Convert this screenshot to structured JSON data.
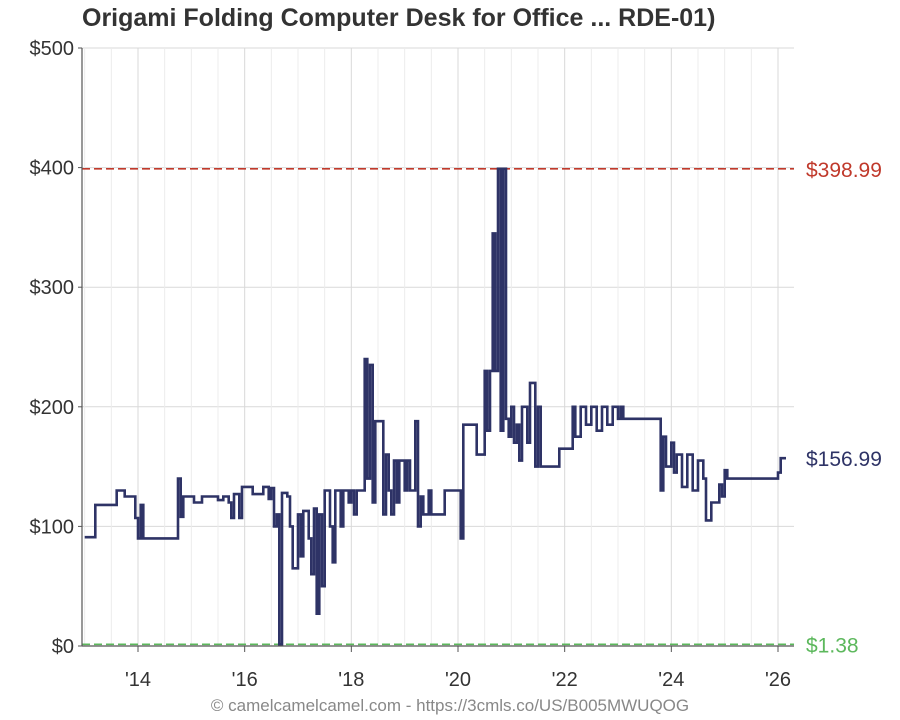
{
  "chart_data": {
    "type": "line",
    "title": "Origami Folding Computer Desk for Office ... RDE-01)",
    "xlabel": "",
    "ylabel": "",
    "y_ticks": [
      "$0",
      "$100",
      "$200",
      "$300",
      "$400",
      "$500"
    ],
    "x_ticks": [
      "'14",
      "'16",
      "'18",
      "'20",
      "'22",
      "'24",
      "'26"
    ],
    "ylim": [
      0,
      500
    ],
    "xlim": [
      2012.95,
      2026.3
    ],
    "grid": true,
    "reference_lines": [
      {
        "label": "$398.99",
        "value": 398.99,
        "color": "#c0392b"
      },
      {
        "label": "$1.38",
        "value": 1.38,
        "color": "#5cb85c"
      }
    ],
    "current_label": "$156.99",
    "current_value": 156.99,
    "series": [
      {
        "color": "#2e3366",
        "points": [
          [
            2013.0,
            91
          ],
          [
            2013.15,
            91
          ],
          [
            2013.2,
            118
          ],
          [
            2013.55,
            118
          ],
          [
            2013.6,
            130
          ],
          [
            2013.7,
            130
          ],
          [
            2013.75,
            125
          ],
          [
            2013.9,
            125
          ],
          [
            2013.95,
            107
          ],
          [
            2014.0,
            90
          ],
          [
            2014.05,
            118
          ],
          [
            2014.1,
            90
          ],
          [
            2014.7,
            90
          ],
          [
            2014.75,
            140
          ],
          [
            2014.8,
            108
          ],
          [
            2014.85,
            125
          ],
          [
            2015.0,
            125
          ],
          [
            2015.05,
            120
          ],
          [
            2015.2,
            125
          ],
          [
            2015.5,
            122
          ],
          [
            2015.6,
            125
          ],
          [
            2015.7,
            120
          ],
          [
            2015.75,
            107
          ],
          [
            2015.8,
            127
          ],
          [
            2015.9,
            107
          ],
          [
            2015.95,
            133
          ],
          [
            2016.1,
            133
          ],
          [
            2016.15,
            127
          ],
          [
            2016.3,
            127
          ],
          [
            2016.35,
            133
          ],
          [
            2016.45,
            123
          ],
          [
            2016.5,
            132
          ],
          [
            2016.55,
            100
          ],
          [
            2016.6,
            110
          ],
          [
            2016.65,
            1.38
          ],
          [
            2016.7,
            128
          ],
          [
            2016.8,
            125
          ],
          [
            2016.85,
            100
          ],
          [
            2016.9,
            65
          ],
          [
            2017.0,
            110
          ],
          [
            2017.05,
            75
          ],
          [
            2017.1,
            113
          ],
          [
            2017.2,
            90
          ],
          [
            2017.25,
            60
          ],
          [
            2017.3,
            115
          ],
          [
            2017.35,
            27
          ],
          [
            2017.4,
            110
          ],
          [
            2017.45,
            50
          ],
          [
            2017.5,
            130
          ],
          [
            2017.6,
            100
          ],
          [
            2017.65,
            70
          ],
          [
            2017.7,
            130
          ],
          [
            2017.8,
            100
          ],
          [
            2017.85,
            130
          ],
          [
            2017.95,
            120
          ],
          [
            2018.0,
            130
          ],
          [
            2018.05,
            110
          ],
          [
            2018.1,
            130
          ],
          [
            2018.2,
            130
          ],
          [
            2018.25,
            240
          ],
          [
            2018.3,
            140
          ],
          [
            2018.35,
            235
          ],
          [
            2018.4,
            120
          ],
          [
            2018.45,
            188
          ],
          [
            2018.55,
            188
          ],
          [
            2018.6,
            110
          ],
          [
            2018.65,
            160
          ],
          [
            2018.7,
            130
          ],
          [
            2018.75,
            110
          ],
          [
            2018.8,
            155
          ],
          [
            2018.85,
            120
          ],
          [
            2018.9,
            155
          ],
          [
            2019.0,
            130
          ],
          [
            2019.05,
            155
          ],
          [
            2019.1,
            130
          ],
          [
            2019.2,
            188
          ],
          [
            2019.25,
            100
          ],
          [
            2019.3,
            125
          ],
          [
            2019.35,
            110
          ],
          [
            2019.45,
            130
          ],
          [
            2019.5,
            110
          ],
          [
            2019.7,
            110
          ],
          [
            2019.75,
            130
          ],
          [
            2020.0,
            130
          ],
          [
            2020.05,
            90
          ],
          [
            2020.1,
            185
          ],
          [
            2020.3,
            185
          ],
          [
            2020.35,
            160
          ],
          [
            2020.45,
            160
          ],
          [
            2020.5,
            230
          ],
          [
            2020.55,
            180
          ],
          [
            2020.6,
            230
          ],
          [
            2020.65,
            345
          ],
          [
            2020.7,
            230
          ],
          [
            2020.75,
            398.99
          ],
          [
            2020.8,
            180
          ],
          [
            2020.85,
            398.99
          ],
          [
            2020.9,
            190
          ],
          [
            2020.95,
            175
          ],
          [
            2021.0,
            200
          ],
          [
            2021.05,
            170
          ],
          [
            2021.1,
            185
          ],
          [
            2021.15,
            155
          ],
          [
            2021.2,
            200
          ],
          [
            2021.3,
            170
          ],
          [
            2021.35,
            220
          ],
          [
            2021.45,
            150
          ],
          [
            2021.5,
            200
          ],
          [
            2021.55,
            150
          ],
          [
            2021.85,
            150
          ],
          [
            2021.9,
            165
          ],
          [
            2022.1,
            165
          ],
          [
            2022.15,
            200
          ],
          [
            2022.2,
            175
          ],
          [
            2022.3,
            200
          ],
          [
            2022.4,
            185
          ],
          [
            2022.5,
            200
          ],
          [
            2022.6,
            180
          ],
          [
            2022.7,
            200
          ],
          [
            2022.8,
            185
          ],
          [
            2022.9,
            200
          ],
          [
            2023.0,
            190
          ],
          [
            2023.05,
            200
          ],
          [
            2023.1,
            190
          ],
          [
            2023.75,
            190
          ],
          [
            2023.8,
            130
          ],
          [
            2023.85,
            175
          ],
          [
            2023.9,
            150
          ],
          [
            2024.0,
            170
          ],
          [
            2024.05,
            145
          ],
          [
            2024.1,
            160
          ],
          [
            2024.2,
            133
          ],
          [
            2024.3,
            160
          ],
          [
            2024.4,
            130
          ],
          [
            2024.5,
            155
          ],
          [
            2024.6,
            140
          ],
          [
            2024.65,
            105
          ],
          [
            2024.7,
            105
          ],
          [
            2024.75,
            120
          ],
          [
            2024.85,
            120
          ],
          [
            2024.9,
            135
          ],
          [
            2024.95,
            125
          ],
          [
            2025.0,
            147
          ],
          [
            2025.05,
            140
          ],
          [
            2025.95,
            140
          ],
          [
            2026.0,
            145
          ],
          [
            2026.05,
            156.99
          ],
          [
            2026.15,
            156.99
          ]
        ]
      }
    ],
    "footer": "© camelcamelcamel.com - https://3cmls.co/US/B005MWUQOG"
  }
}
